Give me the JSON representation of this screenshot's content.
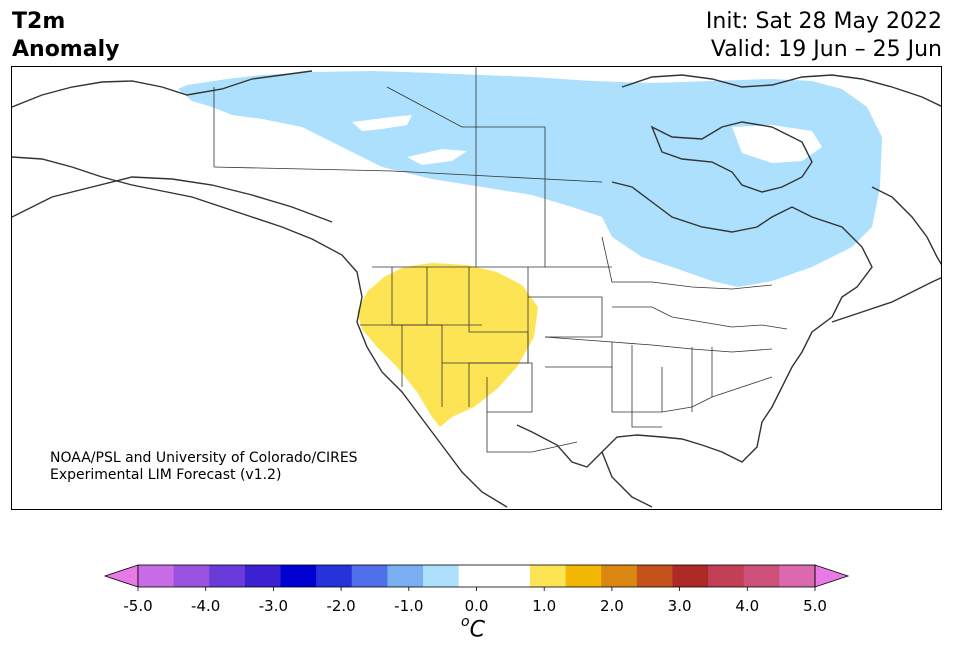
{
  "header": {
    "variable": "T2m",
    "subtitle": "Anomaly",
    "init": "Init: Sat 28 May 2022",
    "valid": "Valid: 19 Jun – 25 Jun"
  },
  "map": {
    "credit_line1": "NOAA/PSL and University of Colorado/CIRES",
    "credit_line2": "Experimental LIM Forecast (v1.2)",
    "colors": {
      "cool_anomaly": "#ade0fd",
      "warm_anomaly": "#fde455",
      "coastline": "#333333"
    }
  },
  "colorbar": {
    "tick_labels": [
      "-5.0",
      "-4.0",
      "-3.0",
      "-2.0",
      "-1.0",
      "0.0",
      "1.0",
      "2.0",
      "3.0",
      "4.0",
      "5.0"
    ],
    "unit_main": "C",
    "unit_sup": "o",
    "colors": [
      "#ea79e8",
      "#c86ce6",
      "#9b52df",
      "#6a3bdb",
      "#3d20cf",
      "#0000d0",
      "#2633db",
      "#4f6ee9",
      "#79aef2",
      "#ade0fd",
      "#ffffff",
      "#ffffff",
      "#fde455",
      "#f2b705",
      "#db8714",
      "#c45319",
      "#ae2a26",
      "#c14056",
      "#cd5079",
      "#dc68b0",
      "#ea79e8"
    ]
  }
}
